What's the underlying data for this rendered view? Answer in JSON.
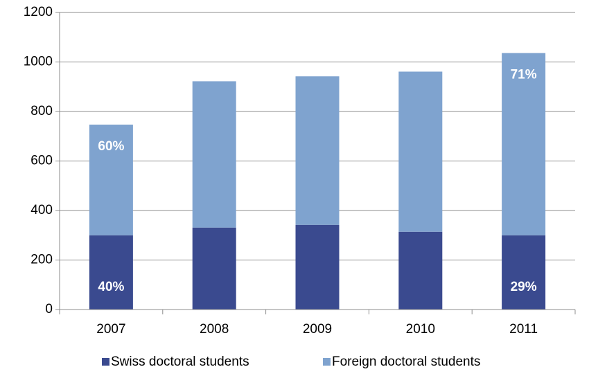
{
  "chart_data": {
    "type": "stacked_bar",
    "categories": [
      "2007",
      "2008",
      "2009",
      "2010",
      "2011"
    ],
    "series": [
      {
        "name": "Swiss doctoral students",
        "color": "#3a4a8f",
        "values": [
          300,
          331,
          342,
          314,
          300
        ],
        "percent_labels": [
          "40%",
          null,
          null,
          null,
          "29%"
        ]
      },
      {
        "name": "Foreign doctoral students",
        "color": "#7fa3cf",
        "values": [
          447,
          591,
          600,
          647,
          736
        ],
        "percent_labels": [
          "60%",
          null,
          null,
          null,
          "71%"
        ]
      }
    ],
    "ylim": [
      0,
      1200
    ],
    "yticks": [
      0,
      200,
      400,
      600,
      800,
      1000,
      1200
    ],
    "grid": true,
    "legend": "bottom"
  }
}
